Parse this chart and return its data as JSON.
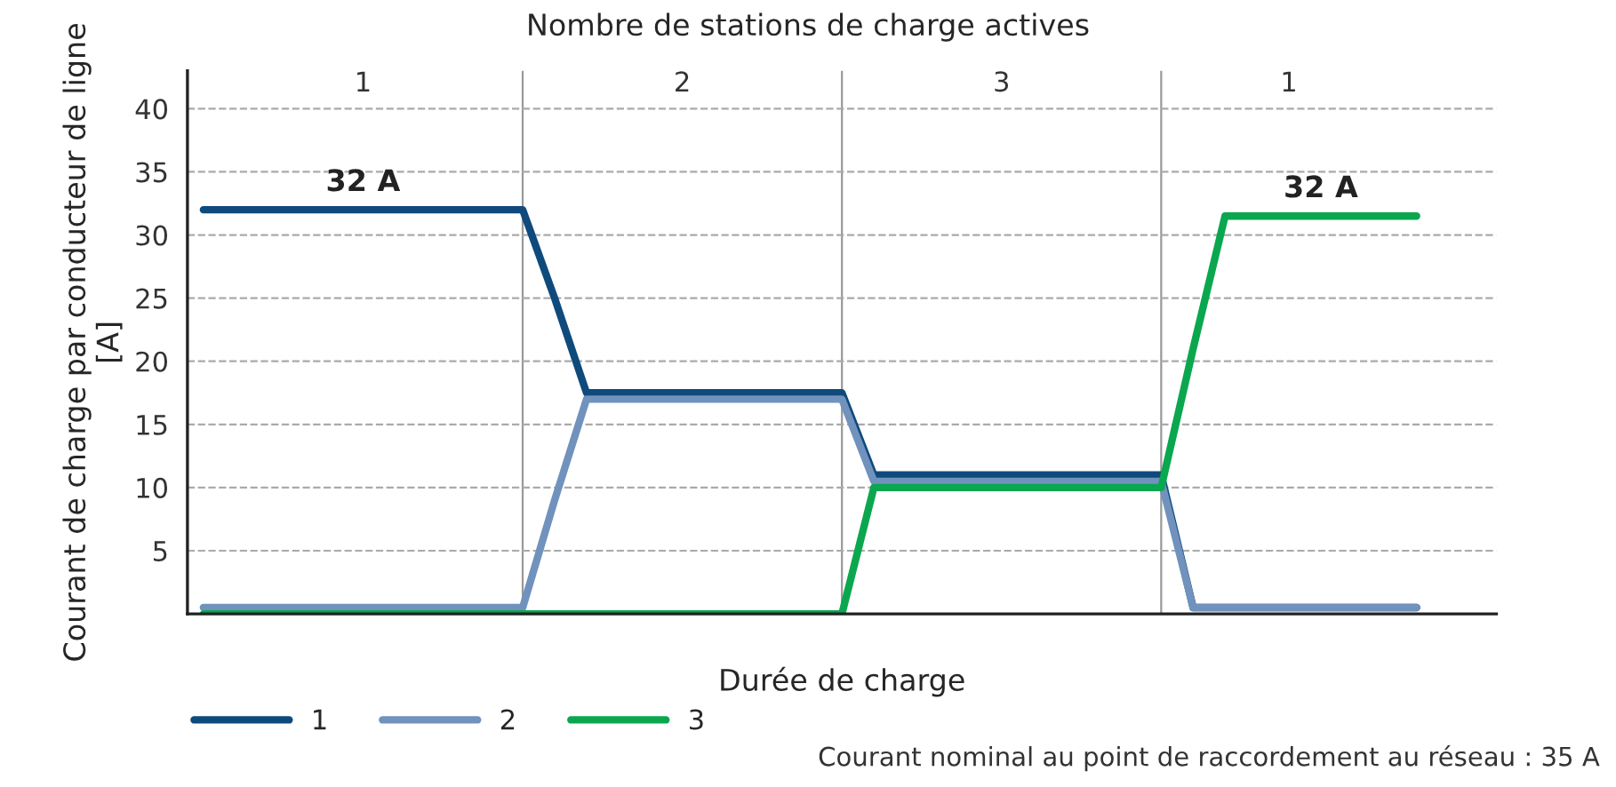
{
  "chart_data": {
    "type": "line",
    "title": "Nombre de stations de charge actives",
    "xlabel": "Durée de charge",
    "ylabel": "Courant de charge par conducteur de ligne\n[A]",
    "categories": [
      null,
      null,
      null,
      null,
      null,
      null,
      null,
      null,
      null,
      null,
      null,
      null,
      null,
      null,
      null,
      null,
      null,
      null,
      null,
      null,
      null,
      null,
      null,
      null,
      null,
      null,
      null,
      null,
      null,
      null,
      null,
      null,
      null,
      null,
      null,
      null,
      null,
      null,
      null
    ],
    "series": [
      {
        "name": "1",
        "color": "#0f4a7c",
        "values": [
          32,
          32,
          32,
          32,
          32,
          32,
          32,
          32,
          32,
          32,
          32,
          25,
          17.5,
          17.5,
          17.5,
          17.5,
          17.5,
          17.5,
          17.5,
          17.5,
          17.5,
          11,
          11,
          11,
          11,
          11,
          11,
          11,
          11,
          11,
          11,
          0.5,
          0.5,
          0.5,
          0.5,
          0.5,
          0.5,
          0.5,
          0.5
        ]
      },
      {
        "name": "2",
        "color": "#7092bd",
        "values": [
          0.5,
          0.5,
          0.5,
          0.5,
          0.5,
          0.5,
          0.5,
          0.5,
          0.5,
          0.5,
          0.5,
          9,
          17,
          17,
          17,
          17,
          17,
          17,
          17,
          17,
          17,
          10.5,
          10.5,
          10.5,
          10.5,
          10.5,
          10.5,
          10.5,
          10.5,
          10.5,
          10.5,
          0.5,
          0.5,
          0.5,
          0.5,
          0.5,
          0.5,
          0.5,
          0.5
        ]
      },
      {
        "name": "3",
        "color": "#0aa74f",
        "values": [
          0,
          0,
          0,
          0,
          0,
          0,
          0,
          0,
          0,
          0,
          0,
          0,
          0,
          0,
          0,
          0,
          0,
          0,
          0,
          0,
          0,
          10,
          10,
          10,
          10,
          10,
          10,
          10,
          10,
          10,
          10,
          21,
          31.5,
          31.5,
          31.5,
          31.5,
          31.5,
          31.5,
          31.5
        ]
      }
    ],
    "annotations": [
      {
        "text": "32 A",
        "y": 32
      },
      {
        "text": "32 A",
        "y": 31.5
      },
      "1",
      "2",
      "3",
      "1",
      "Courant nominal au point de raccordement au réseau : 35 A"
    ],
    "ylim": [
      0,
      43
    ],
    "yticks": [
      5,
      10,
      15,
      20,
      25,
      30,
      35,
      40
    ],
    "grid": true,
    "legend": "bottom left",
    "marker": "none",
    "line_style": "solid"
  }
}
